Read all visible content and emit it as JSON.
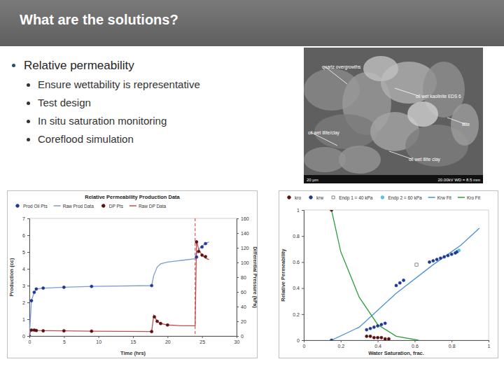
{
  "slide": {
    "title": "What are the solutions?",
    "bullet": "Relative permeability",
    "sub_bullets": [
      "Ensure wettability is representative",
      "Test design",
      "In situ saturation monitoring",
      "Coreflood simulation"
    ]
  },
  "image": {
    "labels": [
      "quartz overgrowths",
      "oil wet kaolinite EDS 6",
      "illite",
      "oil wet illite/clay",
      "oil wet illite clay"
    ],
    "scale": "20 µm",
    "info": "20.00kV  WD = 8.5 mm"
  },
  "chart_data": [
    {
      "type": "line",
      "title": "Relative Permeability Production Data",
      "xlabel": "Time (hrs)",
      "ylabel": "Production (cc)",
      "y2label": "Differential Pressure (kPa)",
      "xlim": [
        0,
        30
      ],
      "xticks": [
        0,
        5,
        10,
        15,
        20,
        25,
        30
      ],
      "ylim": [
        0,
        7
      ],
      "yticks": [
        0,
        1,
        2,
        3,
        4,
        5,
        6,
        7
      ],
      "y2lim": [
        0,
        160
      ],
      "y2ticks": [
        0,
        20,
        40,
        60,
        80,
        100,
        120,
        140,
        160
      ],
      "vlines": [
        24
      ],
      "legend": "top",
      "series": [
        {
          "name": "Prod Oil Pts",
          "type": "scatter",
          "marker": "circle",
          "color": "#1f3a93",
          "x": [
            0,
            0.3,
            0.7,
            1,
            2,
            5,
            9,
            17.7,
            24.2,
            25,
            25.5
          ],
          "values": [
            0,
            2.1,
            2.6,
            2.8,
            2.85,
            2.9,
            2.95,
            3.0,
            4.7,
            5.3,
            5.5
          ]
        },
        {
          "name": "Raw Prod Data",
          "type": "line",
          "line_style": "solid",
          "color": "#7d9bd1",
          "x": [
            0,
            0.3,
            0.7,
            1,
            2,
            5,
            9,
            17.7,
            18,
            18.5,
            19,
            20,
            22,
            24,
            24.3,
            24.8,
            25.5,
            26
          ],
          "values": [
            0,
            2.1,
            2.6,
            2.8,
            2.85,
            2.9,
            2.95,
            3.0,
            3.6,
            4.1,
            4.3,
            4.4,
            4.5,
            4.6,
            5.0,
            5.3,
            5.5,
            5.6
          ]
        },
        {
          "name": "DP Pts",
          "type": "scatter",
          "marker": "circle",
          "color": "#5c1010",
          "axis": "y2",
          "x": [
            0.3,
            0.7,
            1,
            2,
            5,
            9,
            17.7,
            18.1,
            18.5,
            19,
            20,
            24.2,
            24.5,
            25,
            25.5
          ],
          "values": [
            8,
            8,
            7.5,
            7,
            7,
            6.5,
            6,
            26,
            20,
            17,
            15,
            128,
            115,
            110,
            108
          ]
        },
        {
          "name": "Raw DP Data",
          "type": "line",
          "line_style": "solid",
          "color": "#c0504d",
          "axis": "y2",
          "x": [
            0,
            0.2,
            1,
            5,
            9,
            17.7,
            18,
            18.5,
            19,
            20,
            22,
            24,
            24.2,
            24.5,
            25,
            25.5,
            26
          ],
          "values": [
            0,
            8,
            7.5,
            7,
            6.5,
            6,
            28,
            20,
            17,
            15,
            14,
            14,
            130,
            118,
            110,
            106,
            104
          ]
        }
      ]
    },
    {
      "type": "scatter",
      "xlabel": "Water Saturation, frac.",
      "ylabel": "Relative Permeability",
      "xlim": [
        0,
        1
      ],
      "xticks": [
        0,
        0.2,
        0.4,
        0.6,
        0.8,
        1
      ],
      "ylim": [
        0,
        1
      ],
      "yticks": [
        0,
        0.2,
        0.4,
        0.6,
        0.8,
        1
      ],
      "legend": "top",
      "series": [
        {
          "name": "kro",
          "marker": "circle",
          "color": "#5c1010",
          "x": [
            0.15,
            0.34,
            0.36,
            0.38,
            0.4,
            0.42,
            0.44,
            0.46
          ],
          "values": [
            1,
            0.03,
            0.03,
            0.02,
            0.02,
            0.02,
            0.01,
            0.01
          ]
        },
        {
          "name": "krw",
          "marker": "circle",
          "color": "#1f3a93",
          "x": [
            0.15,
            0.34,
            0.36,
            0.38,
            0.4,
            0.42,
            0.44,
            0.5,
            0.52,
            0.54,
            0.68,
            0.7,
            0.72,
            0.74,
            0.76,
            0.78,
            0.8,
            0.82,
            0.83
          ],
          "values": [
            0,
            0.08,
            0.09,
            0.1,
            0.11,
            0.12,
            0.13,
            0.42,
            0.44,
            0.46,
            0.6,
            0.61,
            0.62,
            0.63,
            0.64,
            0.65,
            0.66,
            0.67,
            0.68
          ]
        },
        {
          "name": "Endp 1 = 40 kPa",
          "marker": "square-open",
          "color": "#808080",
          "x": [
            0.61
          ],
          "values": [
            0.58
          ]
        },
        {
          "name": "Endp 2 = 60 kPa",
          "marker": "circle",
          "color": "#5bc0de",
          "x": [
            0.84
          ],
          "values": [
            0.69
          ]
        },
        {
          "name": "Krw Fit",
          "type": "line",
          "line_style": "solid",
          "color": "#4a90d9",
          "x": [
            0.15,
            0.3,
            0.5,
            0.7,
            0.85,
            0.95
          ],
          "values": [
            0,
            0.1,
            0.36,
            0.58,
            0.73,
            0.86
          ]
        },
        {
          "name": "Kro Fit",
          "type": "line",
          "line_style": "solid",
          "color": "#2e9e3e",
          "x": [
            0.15,
            0.2,
            0.3,
            0.4,
            0.5,
            0.62
          ],
          "values": [
            1,
            0.68,
            0.33,
            0.12,
            0.03,
            0
          ]
        }
      ]
    }
  ]
}
